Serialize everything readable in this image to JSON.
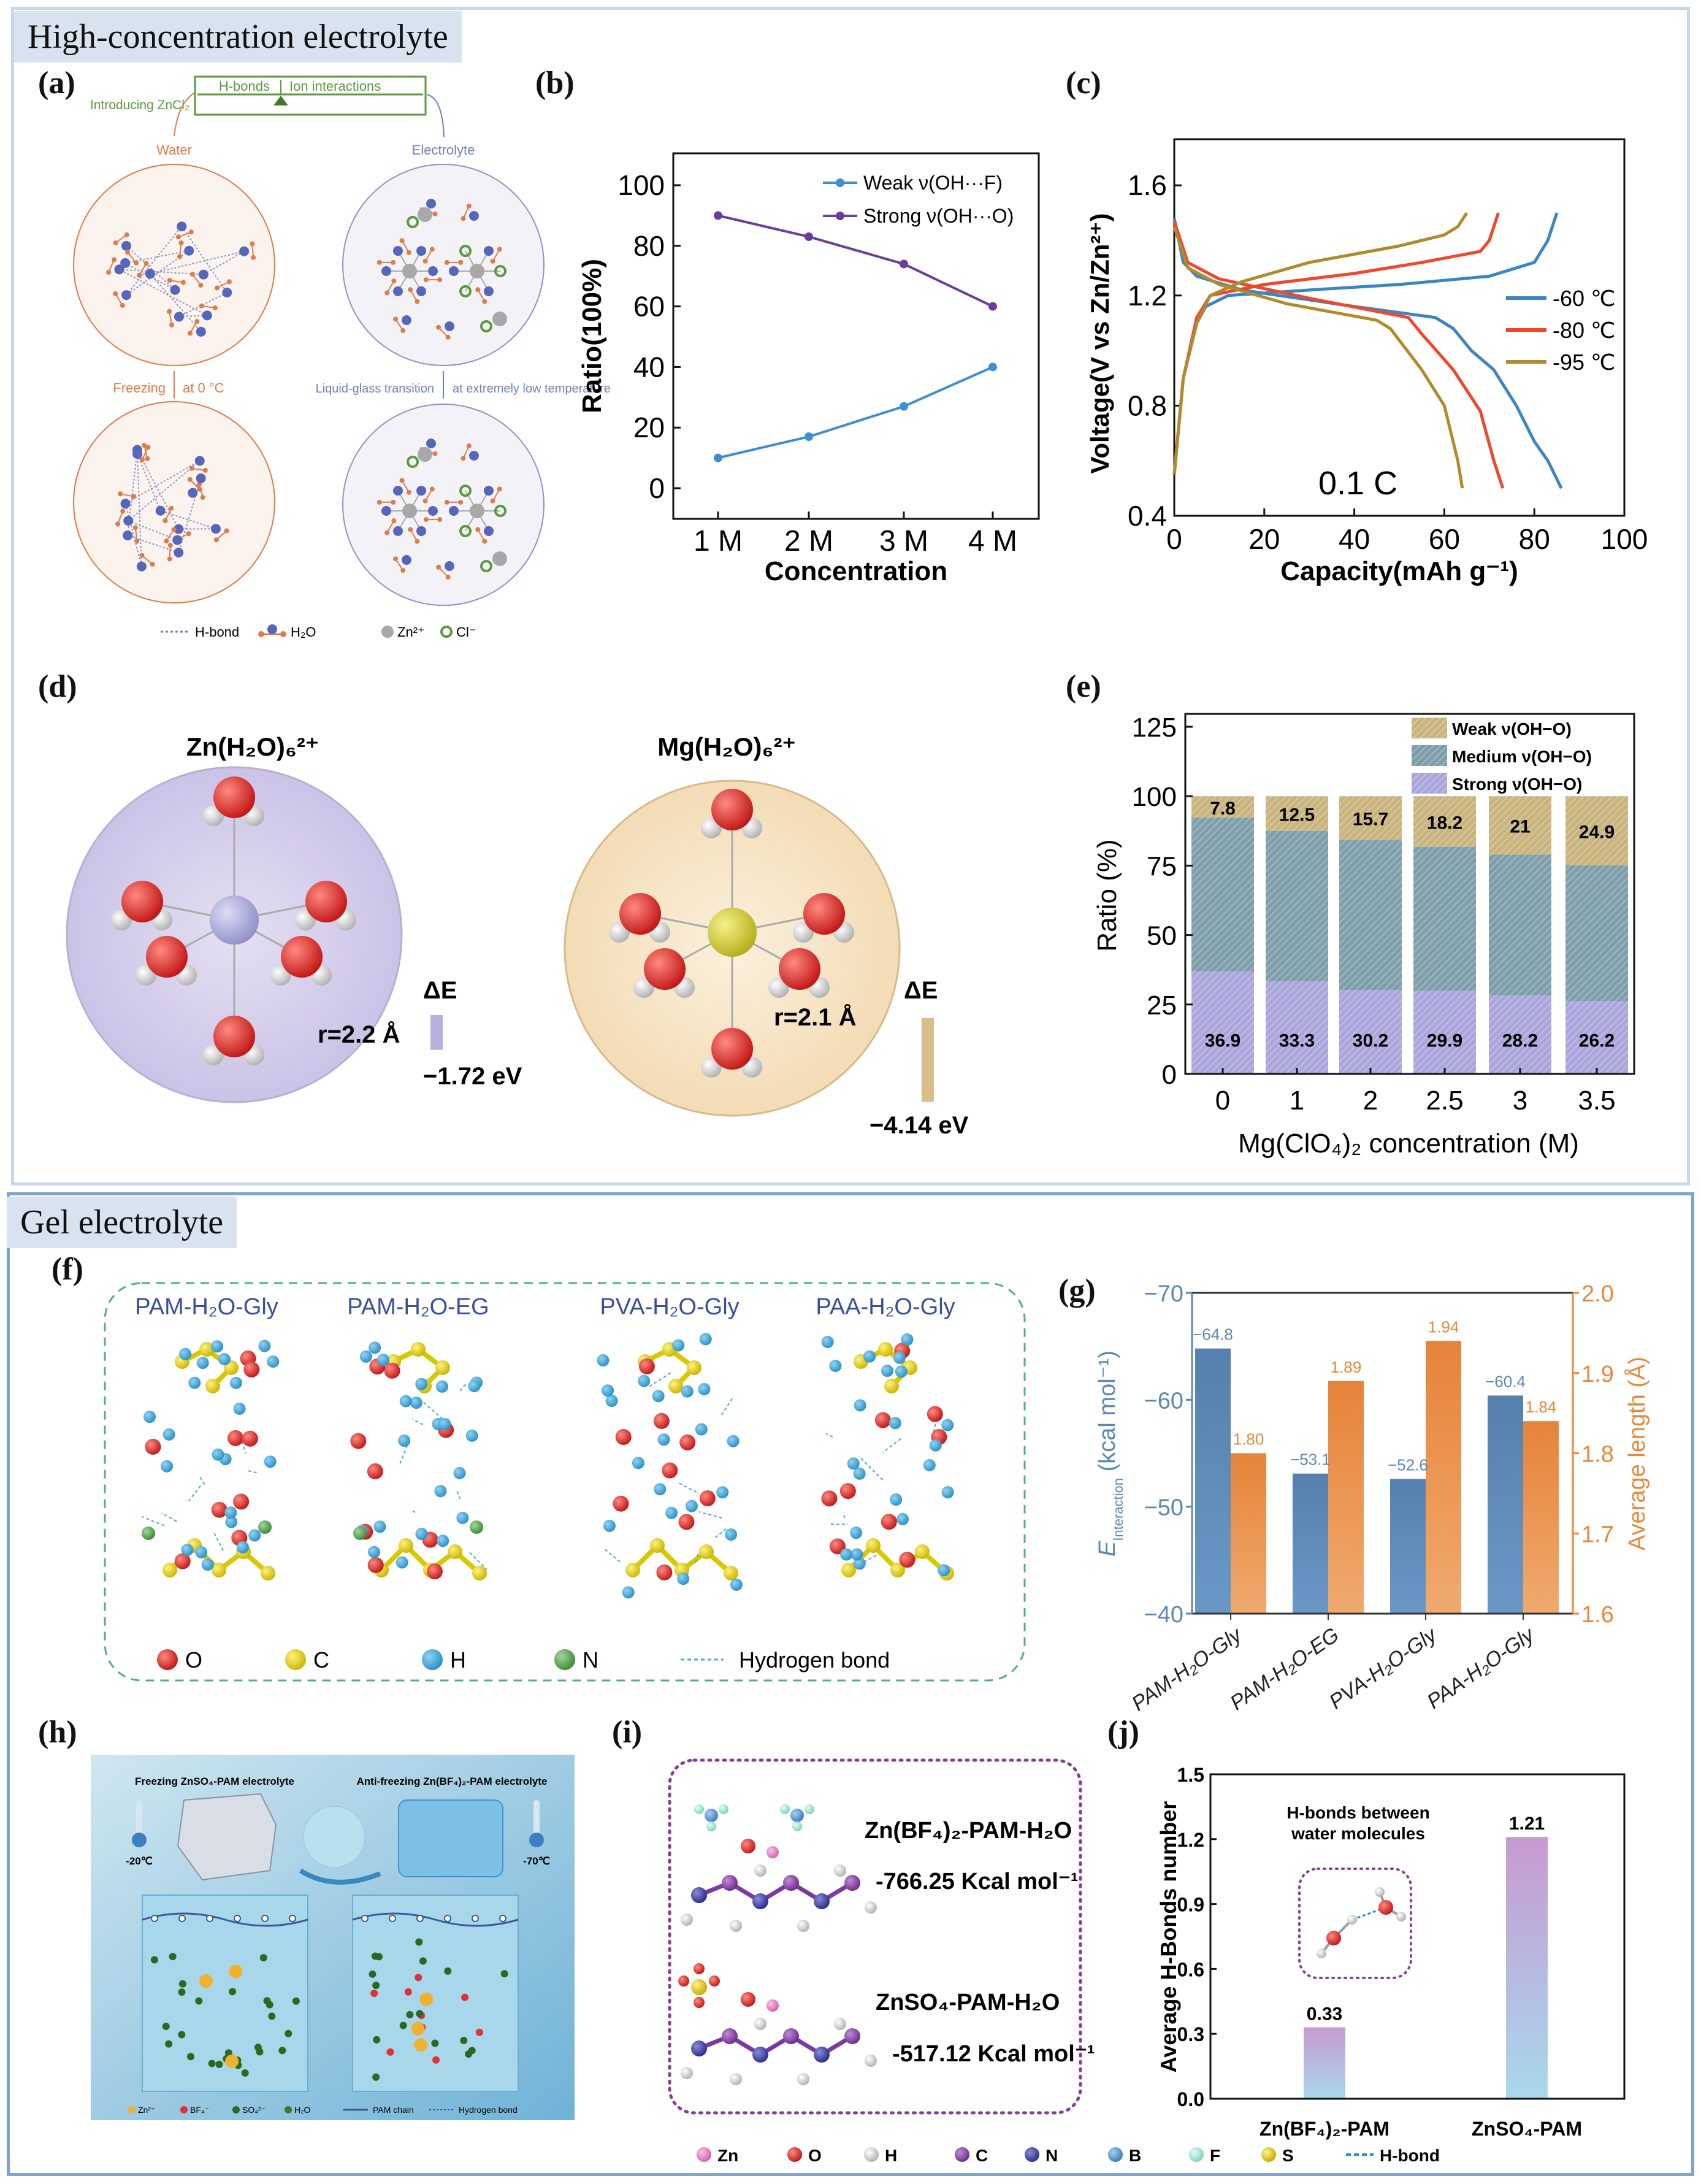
{
  "sections": {
    "top": "High-concentration electrolyte",
    "bottom": "Gel electrolyte"
  },
  "panel_labels": {
    "a": "(a)",
    "b": "(b)",
    "c": "(c)",
    "d": "(d)",
    "e": "(e)",
    "f": "(f)",
    "g": "(g)",
    "h": "(h)",
    "i": "(i)",
    "j": "(j)"
  },
  "panel_a": {
    "introducing": "Introducing ZnCl₂",
    "balance_left": "H-bonds",
    "balance_right": "Ion interactions",
    "water": "Water",
    "electrolyte": "Electrolyte",
    "freezing": "Freezing",
    "at_zero": "at 0 °C",
    "liquid_glass": "Liquid-glass transition",
    "extreme_low": "at extremely low temperature",
    "legend": [
      "H-bond",
      "H₂O",
      "Zn²⁺",
      "Cl⁻"
    ],
    "colors": {
      "water": "#e07b4a",
      "electrolyte": "#6f7fbf",
      "green": "#5a9a3c"
    }
  },
  "panel_d": {
    "zn_title": "Zn(H₂O)₆²⁺",
    "mg_title": "Mg(H₂O)₆²⁺",
    "zn_r": "r=2.2 Å",
    "mg_r": "r=2.1 Å",
    "delta_e": "ΔE",
    "zn_energy": "−1.72 eV",
    "mg_energy": "−4.14 eV",
    "zn_energy_value": -1.72,
    "mg_energy_value": -4.14
  },
  "panel_f": {
    "titles": [
      "PAM-H₂O-Gly",
      "PAM-H₂O-EG",
      "PVA-H₂O-Gly",
      "PAA-H₂O-Gly"
    ],
    "legend": [
      "O",
      "C",
      "H",
      "N",
      "Hydrogen bond"
    ]
  },
  "panel_h": {
    "left_title": "Freezing ZnSO₄-PAM electrolyte",
    "right_title": "Anti-freezing Zn(BF₄)₂-PAM electrolyte",
    "left_temp": "-20℃",
    "right_temp": "-70℃",
    "legend": [
      "Zn²⁺",
      "BF₄⁻",
      "SO₄²⁻",
      "H₂O",
      "PAM chain",
      "Hydrogen bond"
    ]
  },
  "panel_i": {
    "top_name": "Zn(BF₄)₂-PAM-H₂O",
    "top_energy": "-766.25 Kcal mol⁻¹",
    "bottom_name": "ZnSO₄-PAM-H₂O",
    "bottom_energy": "-517.12 Kcal mol⁻¹"
  },
  "legend_bottom": [
    "Zn",
    "O",
    "H",
    "C",
    "N",
    "B",
    "F",
    "S",
    "H-bond"
  ],
  "chart_data": [
    {
      "id": "b",
      "type": "line",
      "categories": [
        "1 M",
        "2 M",
        "3 M",
        "4 M"
      ],
      "series": [
        {
          "name": "Weak ν(OH···F)",
          "values": [
            10,
            17,
            27,
            40
          ],
          "color": "#3d8fd1"
        },
        {
          "name": "Strong ν(OH···O)",
          "values": [
            90,
            83,
            74,
            60
          ],
          "color": "#6a3d9a"
        }
      ],
      "xlabel": "Concentration",
      "ylabel": "Ratio(100%)",
      "ylim": [
        0,
        100
      ],
      "yticks": [
        "0",
        "20",
        "40",
        "60",
        "80",
        "100"
      ],
      "legend": "top-right"
    },
    {
      "id": "c",
      "type": "line",
      "xlabel": "Capacity(mAh g⁻¹)",
      "ylabel": "Voltage(V vs Zn/Zn²⁺)",
      "xlim": [
        0,
        100
      ],
      "ylim": [
        0.4,
        1.7
      ],
      "xticks": [
        "0",
        "20",
        "40",
        "60",
        "80",
        "100"
      ],
      "yticks": [
        "0.4",
        "0.8",
        "1.2",
        "1.6"
      ],
      "annotation": "0.1 C",
      "legend": "right",
      "series": [
        {
          "name": "-60 ℃",
          "color": "#3b86c2",
          "charge": [
            [
              0,
              0.55
            ],
            [
              2,
              0.9
            ],
            [
              5,
              1.1
            ],
            [
              7,
              1.16
            ],
            [
              12,
              1.2
            ],
            [
              30,
              1.22
            ],
            [
              50,
              1.24
            ],
            [
              70,
              1.27
            ],
            [
              80,
              1.32
            ],
            [
              83,
              1.4
            ],
            [
              85,
              1.5
            ]
          ],
          "discharge": [
            [
              0,
              1.48
            ],
            [
              2,
              1.32
            ],
            [
              5,
              1.27
            ],
            [
              15,
              1.22
            ],
            [
              40,
              1.16
            ],
            [
              58,
              1.12
            ],
            [
              62,
              1.08
            ],
            [
              66,
              1.0
            ],
            [
              71,
              0.93
            ],
            [
              76,
              0.8
            ],
            [
              80,
              0.67
            ],
            [
              83,
              0.6
            ],
            [
              86,
              0.5
            ]
          ]
        },
        {
          "name": "-80 ℃",
          "color": "#f0472b",
          "charge": [
            [
              0,
              0.55
            ],
            [
              2,
              0.9
            ],
            [
              5,
              1.12
            ],
            [
              8,
              1.2
            ],
            [
              20,
              1.24
            ],
            [
              40,
              1.28
            ],
            [
              55,
              1.32
            ],
            [
              68,
              1.36
            ],
            [
              70,
              1.4
            ],
            [
              72,
              1.5
            ]
          ],
          "discharge": [
            [
              0,
              1.47
            ],
            [
              3,
              1.32
            ],
            [
              10,
              1.26
            ],
            [
              30,
              1.19
            ],
            [
              52,
              1.12
            ],
            [
              55,
              1.06
            ],
            [
              62,
              0.93
            ],
            [
              68,
              0.78
            ],
            [
              71,
              0.6
            ],
            [
              73,
              0.5
            ]
          ]
        },
        {
          "name": "-95 ℃",
          "color": "#b18a2c",
          "charge": [
            [
              0,
              0.55
            ],
            [
              2,
              0.9
            ],
            [
              5,
              1.1
            ],
            [
              8,
              1.2
            ],
            [
              15,
              1.25
            ],
            [
              30,
              1.32
            ],
            [
              50,
              1.38
            ],
            [
              60,
              1.42
            ],
            [
              63,
              1.45
            ],
            [
              65,
              1.5
            ]
          ],
          "discharge": [
            [
              0,
              1.45
            ],
            [
              3,
              1.3
            ],
            [
              10,
              1.24
            ],
            [
              25,
              1.17
            ],
            [
              45,
              1.11
            ],
            [
              48,
              1.08
            ],
            [
              55,
              0.93
            ],
            [
              60,
              0.8
            ],
            [
              63,
              0.6
            ],
            [
              64,
              0.5
            ]
          ]
        }
      ]
    },
    {
      "id": "e",
      "type": "bar",
      "categories": [
        "0",
        "1",
        "2",
        "2.5",
        "3",
        "3.5"
      ],
      "series": [
        {
          "name": "Strong ν(OH−O)",
          "values": [
            36.9,
            33.3,
            30.2,
            29.9,
            28.2,
            26.2
          ],
          "color": "#aaa6dc",
          "labels": [
            "36.9",
            "33.3",
            "30.2",
            "29.9",
            "28.2",
            "26.2"
          ]
        },
        {
          "name": "Medium ν(OH−O)",
          "values": [
            55.3,
            54.2,
            54.1,
            51.9,
            50.8,
            48.9
          ],
          "color": "#7f9eab"
        },
        {
          "name": "Weak ν(OH−O)",
          "values": [
            7.8,
            12.5,
            15.7,
            18.2,
            21,
            24.9
          ],
          "color": "#c9b47e",
          "labels": [
            "7.8",
            "12.5",
            "15.7",
            "18.2",
            "21",
            "24.9"
          ]
        }
      ],
      "legend_order": [
        "Weak ν(OH−O)",
        "Medium ν(OH−O)",
        "Strong ν(OH−O)"
      ],
      "xlabel": "Mg(ClO₄)₂ concentration (M)",
      "ylabel": "Ratio (%)",
      "ylim": [
        0,
        125
      ],
      "yticks": [
        "0",
        "25",
        "50",
        "75",
        "100",
        "125"
      ],
      "legend": "top-right",
      "stacked": true
    },
    {
      "id": "g",
      "type": "bar",
      "categories": [
        "PAM-H₂O-Gly",
        "PAM-H₂O-EG",
        "PVA-H₂O-Gly",
        "PAA-H₂O-Gly"
      ],
      "series": [
        {
          "name": "E_Interaction",
          "axis": "left",
          "values": [
            -64.8,
            -53.1,
            -52.6,
            -60.4
          ],
          "labels": [
            "−64.8",
            "−53.1",
            "−52.6",
            "−60.4"
          ],
          "color": "#5b87b4"
        },
        {
          "name": "Average length",
          "axis": "right",
          "values": [
            1.8,
            1.89,
            1.94,
            1.84
          ],
          "labels": [
            "1.80",
            "1.89",
            "1.94",
            "1.84"
          ],
          "color": "#e9893e"
        }
      ],
      "ylabel_left": "E",
      "ylabel_left_sub": "Interaction",
      "ylabel_left_unit": " (kcal mol⁻¹)",
      "ylabel_right": "Average length (Å)",
      "ylim_left": [
        -40,
        -70
      ],
      "ylim_right": [
        1.6,
        2.0
      ],
      "yticks_left": [
        "−70",
        "−60",
        "−50",
        "−40"
      ],
      "yticks_right": [
        "2.0",
        "1.9",
        "1.8",
        "1.7",
        "1.6"
      ]
    },
    {
      "id": "j",
      "type": "bar",
      "categories": [
        "Zn(BF₄)₂-PAM",
        "ZnSO₄-PAM"
      ],
      "values": [
        0.33,
        1.21
      ],
      "labels": [
        "0.33",
        "1.21"
      ],
      "ylabel": "Average H-Bonds number",
      "ylim": [
        0,
        1.5
      ],
      "yticks": [
        "0.0",
        "0.3",
        "0.6",
        "0.9",
        "1.2",
        "1.5"
      ],
      "inset_title": "H-bonds between water molecules"
    }
  ]
}
